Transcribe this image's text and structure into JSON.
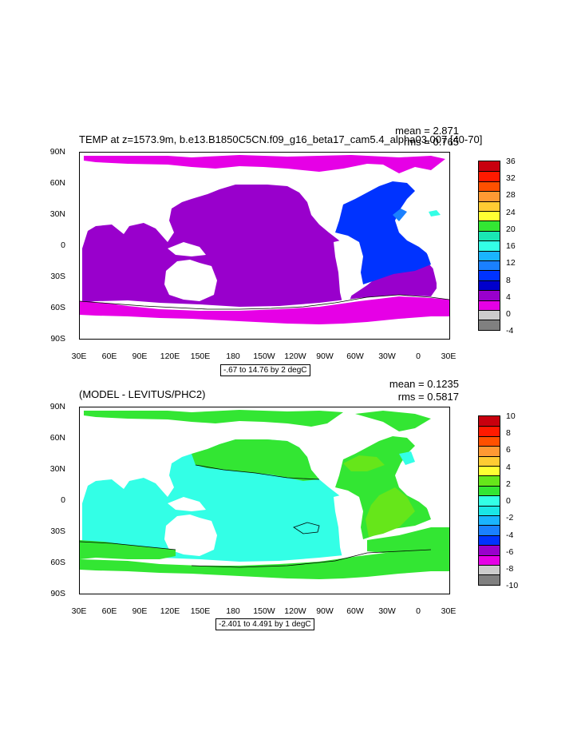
{
  "panels": [
    {
      "title": "TEMP at z=1573.9m, b.e13.B1850C5CN.f09_g16_beta17_cam5.4_alpha03.007 [40-70]",
      "mean": "mean = 2.871",
      "rms": "rms = 0.765",
      "contour_info": "-.67 to 14.76 by 2 degC",
      "lat_labels": [
        "90N",
        "60N",
        "30N",
        "0",
        "30S",
        "60S",
        "90S"
      ],
      "lon_labels": [
        "30E",
        "60E",
        "90E",
        "120E",
        "150E",
        "180",
        "150W",
        "120W",
        "90W",
        "60W",
        "30W",
        "0",
        "30E"
      ],
      "legend_labels": [
        "36",
        "32",
        "28",
        "24",
        "20",
        "16",
        "12",
        "8",
        "4",
        "0",
        "-4"
      ],
      "legend_colors": [
        "#c8000e",
        "#ff1a00",
        "#ff5000",
        "#ff9933",
        "#ffcc33",
        "#ffff33",
        "#33e633",
        "#1ae6b4",
        "#33ffe6",
        "#1ab4ff",
        "#1a80ff",
        "#0033ff",
        "#0000cc",
        "#9900cc",
        "#e600e6",
        "#cccccc",
        "#808080"
      ]
    },
    {
      "title": "(MODEL - LEVITUS/PHC2)",
      "mean": "mean = 0.1235",
      "rms": "rms = 0.5817",
      "contour_info": "-2.401 to 4.491 by 1 degC",
      "lat_labels": [
        "90N",
        "60N",
        "30N",
        "0",
        "30S",
        "60S",
        "90S"
      ],
      "lon_labels": [
        "30E",
        "60E",
        "90E",
        "120E",
        "150E",
        "180",
        "150W",
        "120W",
        "90W",
        "60W",
        "30W",
        "0",
        "30E"
      ],
      "legend_labels": [
        "10",
        "8",
        "6",
        "4",
        "2",
        "0",
        "-2",
        "-4",
        "-6",
        "-8",
        "-10"
      ],
      "legend_colors": [
        "#c8000e",
        "#ff1a00",
        "#ff5000",
        "#ff9933",
        "#ffcc33",
        "#ffff33",
        "#66e61a",
        "#33e633",
        "#33ffe6",
        "#1ae6e6",
        "#1ab4ff",
        "#1a80ff",
        "#0033ff",
        "#9900cc",
        "#e600e6",
        "#cccccc",
        "#808080"
      ]
    }
  ],
  "colors": {
    "p1_ocean": "#9900cc",
    "p1_southern": "#e600e6",
    "p1_arctic": "#e600e6",
    "p1_atlantic": "#0033ff",
    "p1_atlantic_edge": "#1a80ff",
    "p2_cyan": "#33ffe6",
    "p2_green": "#33e633",
    "p2_light_green": "#66e61a",
    "land": "#ffffff"
  }
}
